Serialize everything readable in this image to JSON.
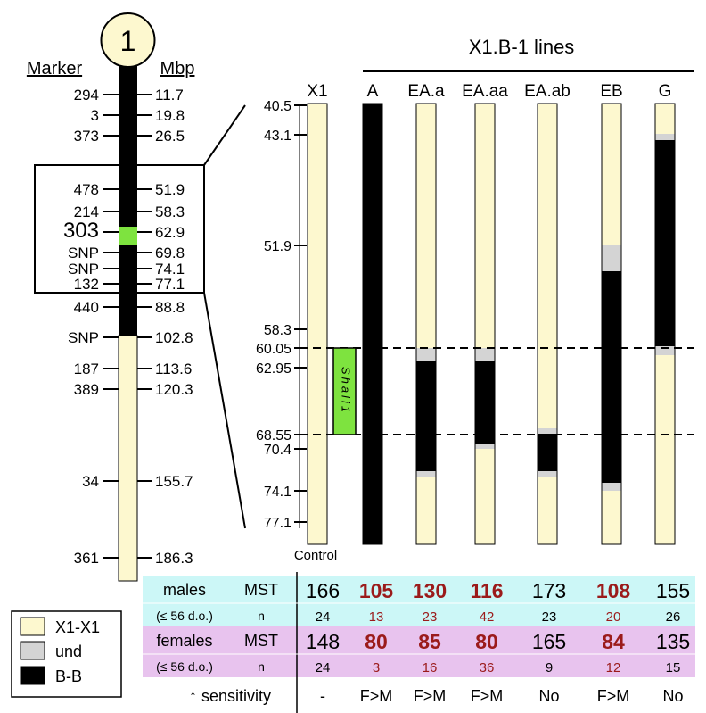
{
  "colors": {
    "x1": "#fdf8cf",
    "und": "#d4d4d4",
    "bb": "#000000",
    "qtl": "#7ee33f",
    "males_bg": "#ccf7f7",
    "females_bg": "#e8c3ee",
    "highlight": "#9b1b1b"
  },
  "chromosome": {
    "label": "1",
    "marker_header": "Marker",
    "mbp_header": "Mbp",
    "markers": [
      {
        "name": "294",
        "mbp": "11.7"
      },
      {
        "name": "3",
        "mbp": "19.8"
      },
      {
        "name": "373",
        "mbp": "26.5"
      },
      {
        "name": "478",
        "mbp": "51.9"
      },
      {
        "name": "214",
        "mbp": "58.3"
      },
      {
        "name": "303",
        "mbp": "62.9"
      },
      {
        "name": "SNP",
        "mbp": "69.8"
      },
      {
        "name": "SNP",
        "mbp": "74.1"
      },
      {
        "name": "132",
        "mbp": "77.1"
      },
      {
        "name": "440",
        "mbp": "88.8"
      },
      {
        "name": "SNP",
        "mbp": "102.8"
      },
      {
        "name": "187",
        "mbp": "113.6"
      },
      {
        "name": "389",
        "mbp": "120.3"
      },
      {
        "name": "34",
        "mbp": "155.7"
      },
      {
        "name": "361",
        "mbp": "186.3"
      }
    ]
  },
  "lines_header": "X1.B-1 lines",
  "positions": [
    "40.5",
    "43.1",
    "51.9",
    "58.3",
    "60.05",
    "62.95",
    "68.55",
    "70.4",
    "74.1",
    "77.1"
  ],
  "control_label": "Control",
  "qtl_label": "Shali1",
  "columns": [
    {
      "label": "X1"
    },
    {
      "label": "A"
    },
    {
      "label": "EA.a"
    },
    {
      "label": "EA.aa"
    },
    {
      "label": "EA.ab"
    },
    {
      "label": "EB"
    },
    {
      "label": "G"
    }
  ],
  "legend": [
    {
      "key": "x1",
      "label": "X1-X1"
    },
    {
      "key": "und",
      "label": "und"
    },
    {
      "key": "bb",
      "label": "B-B"
    }
  ],
  "table": {
    "males_label": "males",
    "males_sub": "(≤ 56 d.o.)",
    "females_label": "females",
    "females_sub": "(≤ 56 d.o.)",
    "mst_label": "MST",
    "n_label": "n",
    "sensitivity_label": "↑ sensitivity",
    "males_mst": [
      "166",
      "105",
      "130",
      "116",
      "173",
      "108",
      "155"
    ],
    "males_n": [
      "24",
      "13",
      "23",
      "42",
      "23",
      "20",
      "26"
    ],
    "females_mst": [
      "148",
      "80",
      "85",
      "80",
      "165",
      "84",
      "135"
    ],
    "females_n": [
      "24",
      "3",
      "16",
      "36",
      "9",
      "12",
      "15"
    ],
    "sensitivity": [
      "-",
      "F>M",
      "F>M",
      "F>M",
      "No",
      "F>M",
      "No"
    ],
    "male_highlight": [
      false,
      true,
      true,
      true,
      false,
      true,
      false
    ],
    "female_highlight": [
      false,
      true,
      true,
      true,
      false,
      true,
      false
    ]
  }
}
